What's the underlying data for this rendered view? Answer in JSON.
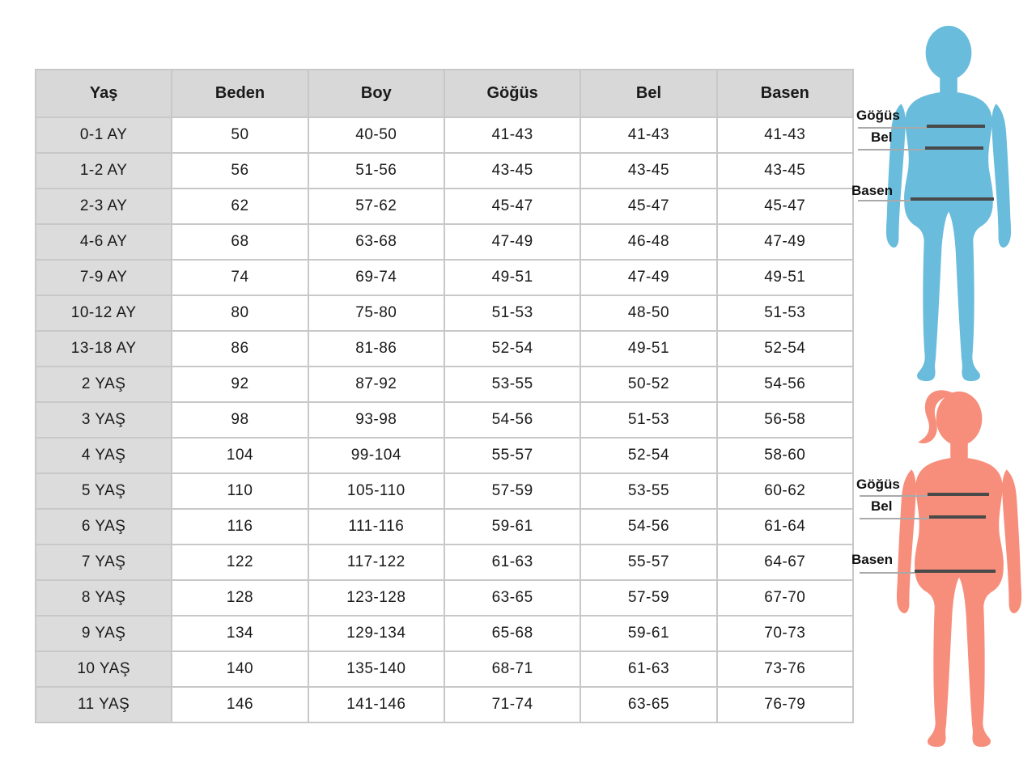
{
  "size_table": {
    "columns": [
      "Yaş",
      "Beden",
      "Boy",
      "Göğüs",
      "Bel",
      "Basen"
    ],
    "rows": [
      [
        "0-1 AY",
        "50",
        "40-50",
        "41-43",
        "41-43",
        "41-43"
      ],
      [
        "1-2 AY",
        "56",
        "51-56",
        "43-45",
        "43-45",
        "43-45"
      ],
      [
        "2-3 AY",
        "62",
        "57-62",
        "45-47",
        "45-47",
        "45-47"
      ],
      [
        "4-6 AY",
        "68",
        "63-68",
        "47-49",
        "46-48",
        "47-49"
      ],
      [
        "7-9 AY",
        "74",
        "69-74",
        "49-51",
        "47-49",
        "49-51"
      ],
      [
        "10-12 AY",
        "80",
        "75-80",
        "51-53",
        "48-50",
        "51-53"
      ],
      [
        "13-18 AY",
        "86",
        "81-86",
        "52-54",
        "49-51",
        "52-54"
      ],
      [
        "2 YAŞ",
        "92",
        "87-92",
        "53-55",
        "50-52",
        "54-56"
      ],
      [
        "3 YAŞ",
        "98",
        "93-98",
        "54-56",
        "51-53",
        "56-58"
      ],
      [
        "4 YAŞ",
        "104",
        "99-104",
        "55-57",
        "52-54",
        "58-60"
      ],
      [
        "5 YAŞ",
        "110",
        "105-110",
        "57-59",
        "53-55",
        "60-62"
      ],
      [
        "6 YAŞ",
        "116",
        "111-116",
        "59-61",
        "54-56",
        "61-64"
      ],
      [
        "7 YAŞ",
        "122",
        "117-122",
        "61-63",
        "55-57",
        "64-67"
      ],
      [
        "8 YAŞ",
        "128",
        "123-128",
        "63-65",
        "57-59",
        "67-70"
      ],
      [
        "9 YAŞ",
        "134",
        "129-134",
        "65-68",
        "59-61",
        "70-73"
      ],
      [
        "10 YAŞ",
        "140",
        "135-140",
        "68-71",
        "61-63",
        "73-76"
      ],
      [
        "11 YAŞ",
        "146",
        "141-146",
        "71-74",
        "63-65",
        "76-79"
      ]
    ],
    "header_bg": "#d8d8d8",
    "row_header_bg": "#dcdcdc",
    "border_color": "#c8c8c8",
    "text_color": "#1a1a1a"
  },
  "figures": {
    "baby": {
      "color": "#69bcdc",
      "labels": {
        "chest": "Göğüs",
        "waist": "Bel",
        "hip": "Basen"
      }
    },
    "girl": {
      "color": "#f68e7b",
      "labels": {
        "chest": "Göğüs",
        "waist": "Bel",
        "hip": "Basen"
      }
    },
    "line_thick_color": "#4a4a4a",
    "line_thin_color": "#a9a9a9",
    "label_color": "#111111"
  }
}
